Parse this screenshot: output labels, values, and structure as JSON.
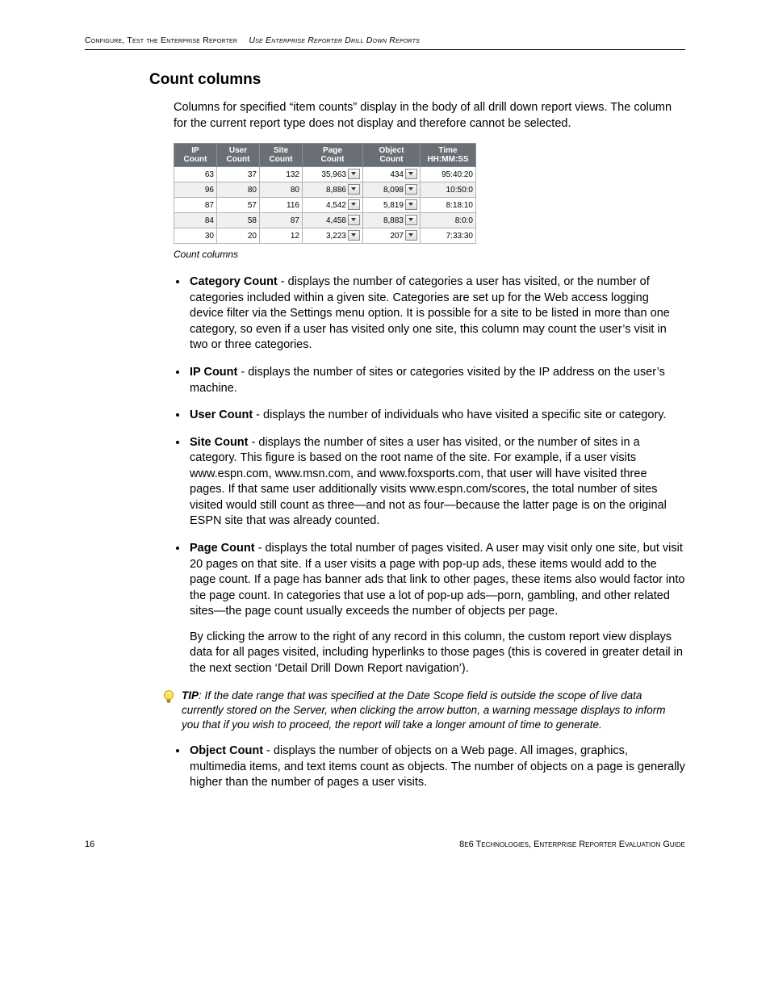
{
  "header": {
    "left": "Configure, Test the Enterprise Reporter",
    "right": "Use Enterprise Reporter Drill Down Reports"
  },
  "section_title": "Count columns",
  "intro": "Columns for specified “item counts” display in the body of all drill down report views. The column for the current report type does not display and therefore cannot be selected.",
  "table": {
    "headers": {
      "ip": "IP\nCount",
      "user": "User\nCount",
      "site": "Site\nCount",
      "page": "Page\nCount",
      "object": "Object\nCount",
      "time": "Time\nHH:MM:SS"
    },
    "rows": [
      {
        "ip": "63",
        "user": "37",
        "site": "132",
        "page": "35,963",
        "object": "434",
        "time": "95:40:20",
        "alt": false
      },
      {
        "ip": "96",
        "user": "80",
        "site": "80",
        "page": "8,886",
        "object": "8,098",
        "time": "10:50:0",
        "alt": true
      },
      {
        "ip": "87",
        "user": "57",
        "site": "116",
        "page": "4,542",
        "object": "5,819",
        "time": "8:18:10",
        "alt": false
      },
      {
        "ip": "84",
        "user": "58",
        "site": "87",
        "page": "4,458",
        "object": "8,883",
        "time": "8:0:0",
        "alt": true
      },
      {
        "ip": "30",
        "user": "20",
        "site": "12",
        "page": "3,223",
        "object": "207",
        "time": "7:33:30",
        "alt": false
      }
    ],
    "caption": "Count columns"
  },
  "bullets": {
    "category": {
      "term": "Category Count",
      "text": " - displays the number of categories a user has visited, or the number of categories included within a given site. Categories are set up for the Web access logging device filter via the Settings menu option. It is possible for a site to be listed in more than one category, so even if a user has visited only one site, this column may count the user’s visit in two or three categories."
    },
    "ip": {
      "term": "IP Count",
      "text": " - displays the number of sites or categories visited by the IP address on the user’s machine."
    },
    "user": {
      "term": "User Count",
      "text": " - displays the number of individuals who have visited a specific site or category."
    },
    "site": {
      "term": "Site Count",
      "text": " - displays the number of sites a user has visited, or the number of sites in a category. This figure is based on the root name of the site. For example, if a user visits www.espn.com, www.msn.com, and www.foxsports.com, that user will have visited three pages. If that same user additionally visits www.espn.com/scores, the total number of sites visited would still count as three—and not as four—because the latter page is on the original ESPN site that was already counted."
    },
    "page": {
      "term": "Page Count",
      "text": " - displays the total number of pages visited. A user may visit only one site, but visit 20 pages on that site. If a user visits a page with pop-up ads, these items would add to the page count. If a page has banner ads that link to other pages, these items also would factor into the page count. In categories that use a lot of pop-up ads—porn, gambling, and other related sites—the page count usually exceeds the number of objects per page.",
      "para2": "By clicking the arrow to the right of any record in this column, the custom report view displays data for all pages visited, including hyperlinks to those pages (this is covered in greater detail in the next section ‘Detail Drill Down Report navigation’)."
    },
    "object": {
      "term": "Object Count",
      "text": " - displays the number of objects on a Web page. All images, graphics, multimedia items, and text items count as objects. The number of objects on a page is generally higher than the number of pages a user visits."
    }
  },
  "tip": {
    "label": "TIP",
    "text": ": If the date range that was specified at the Date Scope field is outside the scope of live data currently stored on the Server, when clicking the arrow button, a warning message displays to inform you that if you wish to proceed, the report will take a longer amount of time to generate."
  },
  "footer": {
    "page": "16",
    "right": "8e6 Technologies, Enterprise Reporter Evaluation Guide"
  }
}
